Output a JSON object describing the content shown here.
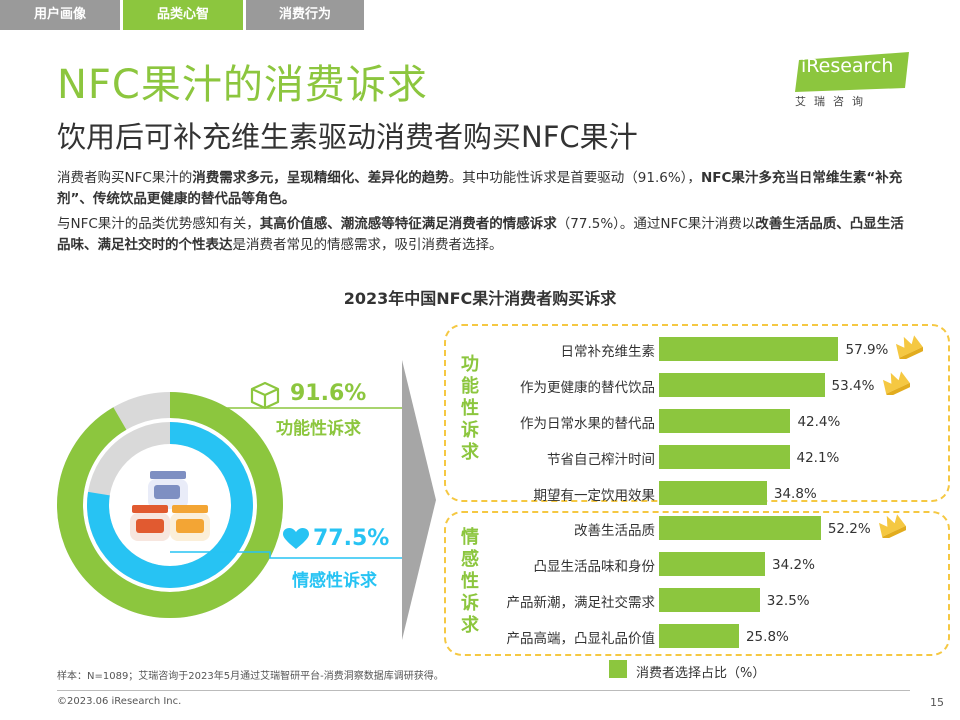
{
  "tabs": [
    {
      "label": "用户画像",
      "active": false
    },
    {
      "label": "品类心智",
      "active": true
    },
    {
      "label": "消费行为",
      "active": false
    }
  ],
  "title": "NFC果汁的消费诉求",
  "subtitle": "饮用后可补充维生素驱动消费者购买NFC果汁",
  "logo": {
    "text": "iResearch",
    "sub": "艾瑞咨询"
  },
  "paragraph1": [
    {
      "t": "消费者购买NFC果汁的",
      "b": false
    },
    {
      "t": "消费需求多元，呈现精细化、差异化的趋势",
      "b": true
    },
    {
      "t": "。其中功能性诉求是首要驱动（91.6%），",
      "b": false
    },
    {
      "t": "NFC果汁多充当日常维生素“补充剂”、传统饮品更健康的替代品等角色。",
      "b": true
    }
  ],
  "paragraph2": [
    {
      "t": "与NFC果汁的品类优势感知有关，",
      "b": false
    },
    {
      "t": "其高价值感、潮流感等特征满足消费者的情感诉求",
      "b": true
    },
    {
      "t": "（77.5%）。通过NFC果汁消费以",
      "b": false
    },
    {
      "t": "改善生活品质、凸显生活品味、满足社交时的个性表达",
      "b": true
    },
    {
      "t": "是消费者常见的情感需求，吸引消费者选择。",
      "b": false
    }
  ],
  "chart_title": "2023年中国NFC果汁消费者购买诉求",
  "donut": {
    "outer": {
      "value": 91.6,
      "label": "功能性诉求",
      "value_text": "91.6%"
    },
    "inner": {
      "value": 77.5,
      "label": "情感性诉求",
      "value_text": "77.5%"
    }
  },
  "groups": [
    {
      "label_chars": [
        "功",
        "能",
        "性",
        "诉",
        "求"
      ]
    },
    {
      "label_chars": [
        "情",
        "感",
        "性",
        "诉",
        "求"
      ]
    }
  ],
  "chart_data": {
    "type": "bar",
    "title": "2023年中国NFC果汁消费者购买诉求",
    "categories": [
      "日常补充维生素",
      "作为更健康的替代饮品",
      "作为日常水果的替代品",
      "节省自己榨汁时间",
      "期望有一定饮用效果",
      "改善生活品质",
      "凸显生活品味和身份",
      "产品新潮，满足社交需求",
      "产品高端，凸显礼品价值"
    ],
    "values": [
      57.9,
      53.4,
      42.4,
      42.1,
      34.8,
      52.2,
      34.2,
      32.5,
      25.8
    ],
    "value_labels": [
      "57.9%",
      "53.4%",
      "42.4%",
      "42.1%",
      "34.8%",
      "52.2%",
      "34.2%",
      "32.5%",
      "25.8%"
    ],
    "crowned": [
      true,
      true,
      false,
      false,
      false,
      true,
      false,
      false,
      false
    ],
    "series": [
      {
        "name": "消费者选择占比（%）"
      }
    ],
    "bar_color": "#8cc63e"
  },
  "legend": "消费者选择占比（%）",
  "footnote": "样本：N=1089；艾瑞咨询于2023年5月通过艾瑞智研平台-消费洞察数据库调研获得。",
  "copyright": "©2023.06 iResearch Inc.",
  "page": "15",
  "colors": {
    "green": "#8cc63e",
    "blue": "#27c3f3",
    "gray": "#d9d9d9",
    "gold": "#f5c842"
  }
}
